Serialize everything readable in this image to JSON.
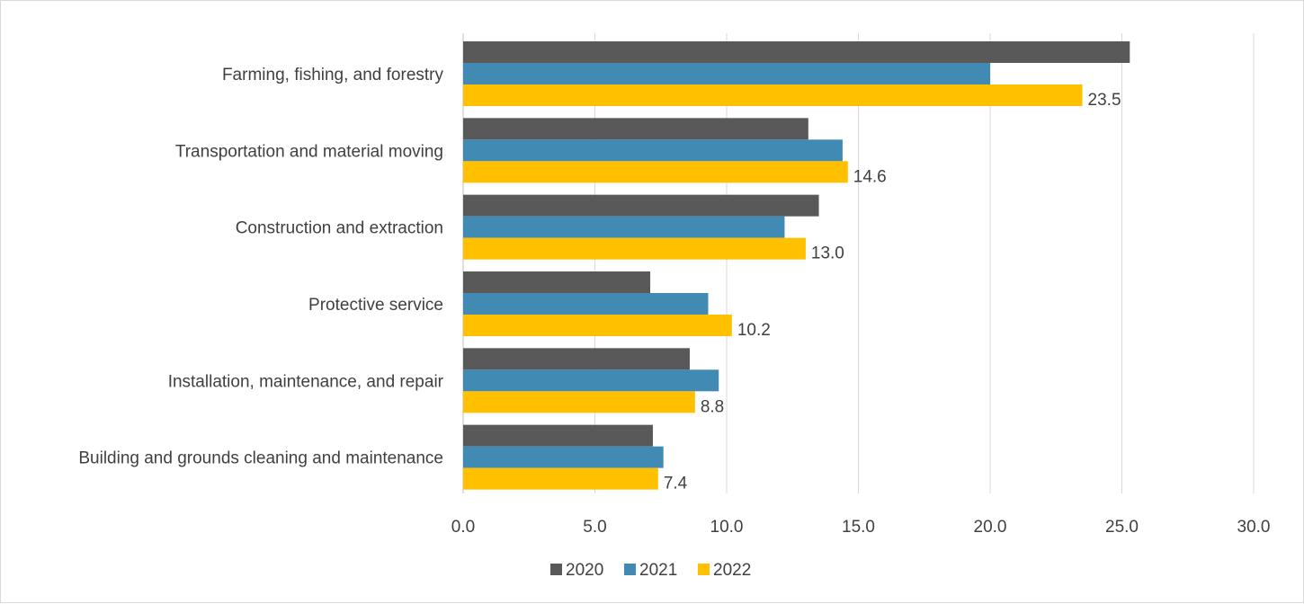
{
  "chart_data": {
    "type": "bar",
    "orientation": "horizontal",
    "categories": [
      "Farming, fishing, and forestry",
      "Transportation and material moving",
      "Construction and extraction",
      "Protective service",
      "Installation, maintenance, and repair",
      "Building and grounds cleaning and maintenance"
    ],
    "series": [
      {
        "name": "2020",
        "color": "#595959",
        "values": [
          25.3,
          13.1,
          13.5,
          7.1,
          8.6,
          7.2
        ]
      },
      {
        "name": "2021",
        "color": "#418ab3",
        "values": [
          20.0,
          14.4,
          12.2,
          9.3,
          9.7,
          7.6
        ]
      },
      {
        "name": "2022",
        "color": "#ffc000",
        "values": [
          23.5,
          14.6,
          13.0,
          10.2,
          8.8,
          7.4
        ],
        "data_labels": [
          "23.5",
          "14.6",
          "13.0",
          "10.2",
          "8.8",
          "7.4"
        ]
      }
    ],
    "xlim": [
      0,
      30
    ],
    "x_ticks": [
      "0.0",
      "5.0",
      "10.0",
      "15.0",
      "20.0",
      "25.0",
      "30.0"
    ],
    "gridlines": true,
    "legend_position": "bottom",
    "title": "",
    "xlabel": "",
    "ylabel": ""
  }
}
